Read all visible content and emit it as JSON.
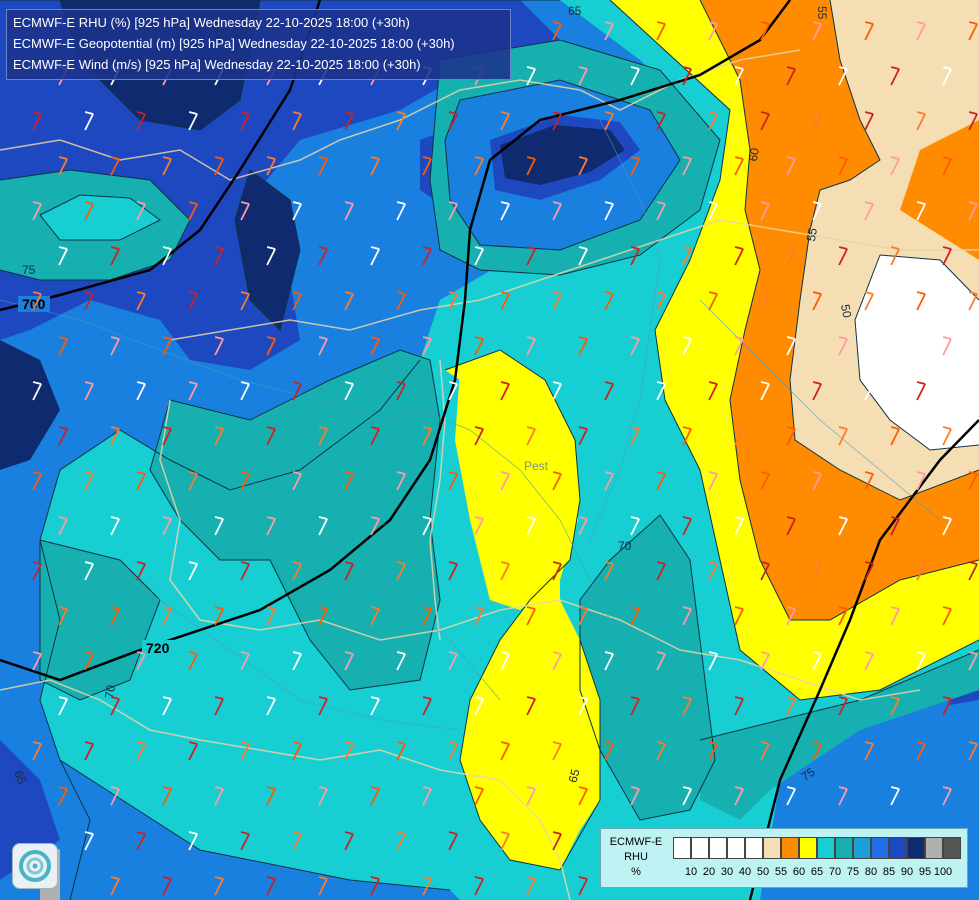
{
  "header": {
    "line1": "ECMWF-E RHU (%) [925 hPa] Wednesday 22-10-2025 18:00 (+30h)",
    "line2": "ECMWF-E Geopotential (m) [925 hPa] Wednesday 22-10-2025 18:00 (+30h)",
    "line3": "ECMWF-E Wind (m/s) [925 hPa] Wednesday 22-10-2025 18:00 (+30h)"
  },
  "legend": {
    "title_lines": [
      "ECMWF-E",
      "RHU",
      "%"
    ],
    "colors": [
      "#ffffff",
      "#ffffff",
      "#ffffff",
      "#ffffff",
      "#ffffff",
      "#f5deb3",
      "#ff8c00",
      "#ffff00",
      "#17cfd3",
      "#16b0b0",
      "#1a9fd6",
      "#1e6fe6",
      "#1d48c0",
      "#0f2a6e",
      "#b0b0b0",
      "#555555"
    ],
    "ticks": [
      "10",
      "20",
      "30",
      "40",
      "50",
      "55",
      "60",
      "65",
      "70",
      "75",
      "80",
      "85",
      "90",
      "95",
      "100"
    ]
  },
  "map": {
    "geopotential_labels": [
      "700",
      "720"
    ],
    "rhu_contour_labels": [
      "65",
      "55",
      "60",
      "55",
      "50",
      "75",
      "70",
      "70",
      "65",
      "75",
      "65"
    ],
    "place_labels": [
      "Pest"
    ]
  },
  "colors": {
    "rhu_50": "#ffffff",
    "rhu_55": "#f5deb3",
    "rhu_60": "#ff8c00",
    "rhu_65": "#ffff00",
    "rhu_70": "#17cfd3",
    "rhu_75": "#16b0b0",
    "rhu_80": "#1a80e0",
    "rhu_85": "#1d48c0",
    "rhu_90": "#0f2a6e"
  }
}
